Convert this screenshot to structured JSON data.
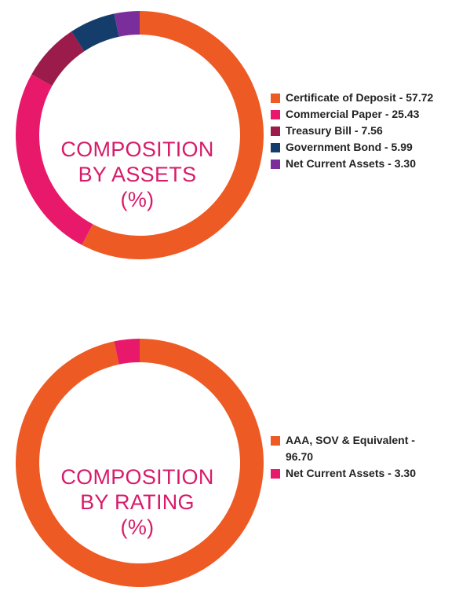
{
  "chart_data": [
    {
      "type": "pie",
      "title": "COMPOSITION BY ASSETS (%)",
      "title_lines": [
        "COMPOSITION",
        "BY ASSETS",
        "(%)"
      ],
      "series": [
        {
          "name": "Certificate of Deposit",
          "value": 57.72,
          "color": "#ee5a24"
        },
        {
          "name": "Commercial Paper",
          "value": 25.43,
          "color": "#e8196a"
        },
        {
          "name": "Treasury Bill",
          "value": 7.56,
          "color": "#9b1b4b"
        },
        {
          "name": "Government Bond",
          "value": 5.99,
          "color": "#143d6b"
        },
        {
          "name": "Net Current Assets",
          "value": 3.3,
          "color": "#7a2e9c"
        }
      ],
      "legend_lines": [
        [
          "Certificate of Deposit - 57.72"
        ],
        [
          "Commercial Paper - 25.43"
        ],
        [
          "Treasury Bill - 7.56"
        ],
        [
          "Government Bond - 5.99"
        ],
        [
          "Net Current Assets - 3.30"
        ]
      ],
      "legend_position": "right"
    },
    {
      "type": "pie",
      "title": "COMPOSITION BY RATING (%)",
      "title_lines": [
        "COMPOSITION",
        "BY RATING",
        "(%)"
      ],
      "series": [
        {
          "name": "AAA, SOV & Equivalent",
          "value": 96.7,
          "color": "#ee5a24"
        },
        {
          "name": "Net Current Assets",
          "value": 3.3,
          "color": "#e8196a"
        }
      ],
      "legend_lines": [
        [
          "AAA, SOV & Equivalent -",
          "96.70"
        ],
        [
          "Net Current Assets - 3.30"
        ]
      ],
      "legend_position": "right"
    }
  ]
}
